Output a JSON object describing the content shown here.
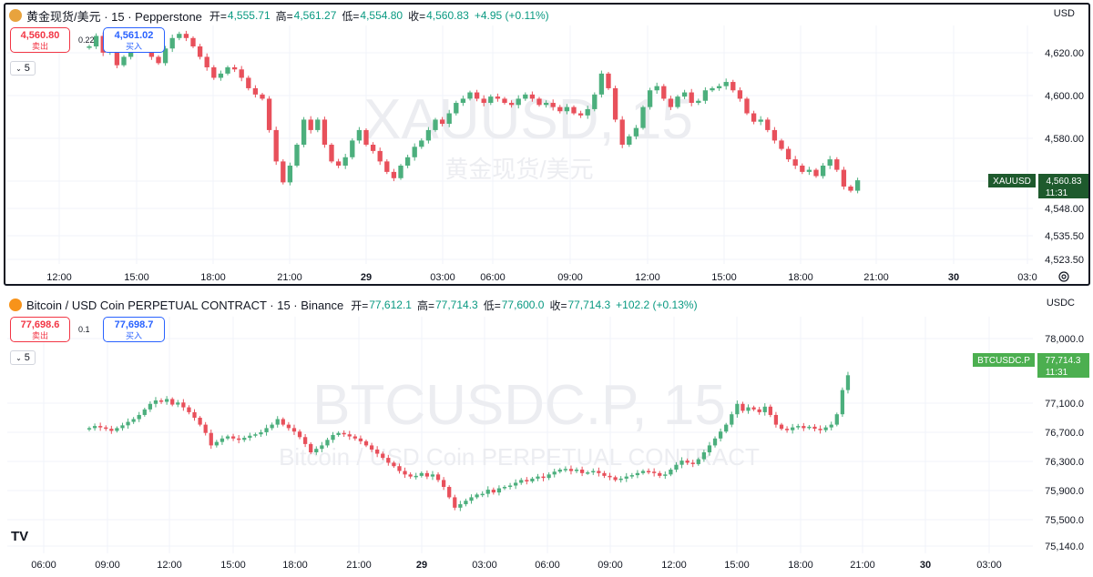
{
  "colors": {
    "up": "#4caf7d",
    "down": "#e8505b",
    "grid": "#f0f3fa",
    "axis_text": "#131722",
    "watermark": "#e9ebef"
  },
  "top_chart": {
    "symbol_title": "黄金现货/美元 · 15 · Pepperstone",
    "open_label": "开=",
    "open": "4,555.71",
    "high_label": "高=",
    "high": "4,561.27",
    "low_label": "低=",
    "low": "4,554.80",
    "close_label": "收=",
    "close": "4,560.83",
    "change": "+4.95 (+0.11%)",
    "currency": "USD",
    "sell_price": "4,560.80",
    "sell_label": "卖出",
    "spread": "0.22",
    "buy_price": "4,561.02",
    "buy_label": "买入",
    "indicator_count": "5",
    "watermark_symbol": "XAUUSD, 15",
    "watermark_name": "黄金现货/美元",
    "price_tag_symbol": "XAUUSD",
    "price_tag_value": "4,560.83",
    "price_tag_time": "11:31",
    "y_ticks": [
      "4,620.00",
      "4,600.00",
      "4,580.00",
      "4,560.00",
      "4,548.00",
      "4,535.50",
      "4,523.50"
    ],
    "x_ticks": [
      "12:00",
      "15:00",
      "18:00",
      "21:00",
      "29",
      "03:00",
      "06:00",
      "09:00",
      "12:00",
      "15:00",
      "18:00",
      "21:00",
      "30",
      "03:0"
    ]
  },
  "bottom_chart": {
    "symbol_title": "Bitcoin / USD Coin PERPETUAL CONTRACT · 15 · Binance",
    "open_label": "开=",
    "open": "77,612.1",
    "high_label": "高=",
    "high": "77,714.3",
    "low_label": "低=",
    "low": "77,600.0",
    "close_label": "收=",
    "close": "77,714.3",
    "change": "+102.2 (+0.13%)",
    "currency": "USDC",
    "sell_price": "77,698.6",
    "sell_label": "卖出",
    "spread": "0.1",
    "buy_price": "77,698.7",
    "buy_label": "买入",
    "indicator_count": "5",
    "watermark_symbol": "BTCUSDC.P, 15",
    "watermark_name": "Bitcoin / USD Coin PERPETUAL CONTRACT",
    "price_tag_symbol": "BTCUSDC.P",
    "price_tag_value": "77,714.3",
    "price_tag_time": "11:31",
    "y_ticks": [
      "78,000.0",
      "77,100.0",
      "76,700.0",
      "76,300.0",
      "75,900.0",
      "75,500.0",
      "75,140.0"
    ],
    "x_ticks": [
      "06:00",
      "09:00",
      "12:00",
      "15:00",
      "18:00",
      "21:00",
      "29",
      "03:00",
      "06:00",
      "09:00",
      "12:00",
      "15:00",
      "18:00",
      "21:00",
      "30",
      "03:00"
    ],
    "logo_text": "TV"
  },
  "chart_data": [
    {
      "type": "candlestick",
      "series_name": "XAUUSD",
      "timeframe": "15",
      "currency": "USD",
      "ylim": [
        4521,
        4635
      ],
      "close": [
        4625,
        4630,
        4622,
        4627,
        4616,
        4620,
        4626,
        4632,
        4628,
        4620,
        4617,
        4624,
        4629,
        4631,
        4629,
        4625,
        4620,
        4615,
        4610,
        4612,
        4615,
        4614,
        4610,
        4605,
        4602,
        4600,
        4585,
        4570,
        4560,
        4568,
        4578,
        4590,
        4585,
        4590,
        4578,
        4570,
        4568,
        4572,
        4580,
        4585,
        4578,
        4575,
        4570,
        4565,
        4562,
        4568,
        4572,
        4577,
        4580,
        4585,
        4590,
        4588,
        4593,
        4598,
        4600,
        4603,
        4600,
        4598,
        4601,
        4600,
        4598,
        4597,
        4600,
        4602,
        4600,
        4597,
        4598,
        4596,
        4594,
        4596,
        4593,
        4592,
        4595,
        4602,
        4612,
        4605,
        4590,
        4578,
        4582,
        4586,
        4596,
        4604,
        4606,
        4600,
        4596,
        4601,
        4603,
        4598,
        4599,
        4604,
        4605,
        4606,
        4608,
        4604,
        4600,
        4593,
        4589,
        4590,
        4585,
        4580,
        4576,
        4571,
        4568,
        4565,
        4566,
        4563,
        4568,
        4571,
        4566,
        4558,
        4556,
        4561
      ]
    },
    {
      "type": "candlestick",
      "series_name": "BTCUSDC.P",
      "timeframe": "15",
      "currency": "USDC",
      "ylim": [
        75140,
        78560
      ],
      "close": [
        76950,
        76980,
        76960,
        76940,
        76910,
        76950,
        76990,
        77040,
        77080,
        77140,
        77220,
        77300,
        77350,
        77330,
        77370,
        77290,
        77320,
        77250,
        77180,
        77100,
        77000,
        76880,
        76700,
        76750,
        76800,
        76830,
        76800,
        76780,
        76810,
        76840,
        76860,
        76890,
        76950,
        77000,
        77080,
        77000,
        76950,
        76900,
        76820,
        76720,
        76600,
        76650,
        76700,
        76780,
        76850,
        76880,
        76860,
        76830,
        76800,
        76760,
        76700,
        76640,
        76580,
        76520,
        76450,
        76400,
        76330,
        76280,
        76250,
        76260,
        76300,
        76250,
        76280,
        76200,
        76100,
        75950,
        75800,
        75850,
        75900,
        75950,
        75990,
        76000,
        76060,
        76020,
        76080,
        76100,
        76120,
        76160,
        76200,
        76180,
        76220,
        76250,
        76230,
        76280,
        76320,
        76350,
        76360,
        76330,
        76350,
        76300,
        76310,
        76330,
        76300,
        76260,
        76240,
        76200,
        76220,
        76250,
        76270,
        76300,
        76330,
        76320,
        76300,
        76260,
        76280,
        76350,
        76420,
        76480,
        76450,
        76430,
        76500,
        76600,
        76700,
        76800,
        76900,
        77000,
        77150,
        77300,
        77200,
        77250,
        77220,
        77180,
        77260,
        77140,
        77000,
        76940,
        76920,
        76960,
        76980,
        76950,
        76970,
        76940,
        76920,
        76960,
        77000,
        77150,
        77500,
        77714
      ]
    }
  ]
}
